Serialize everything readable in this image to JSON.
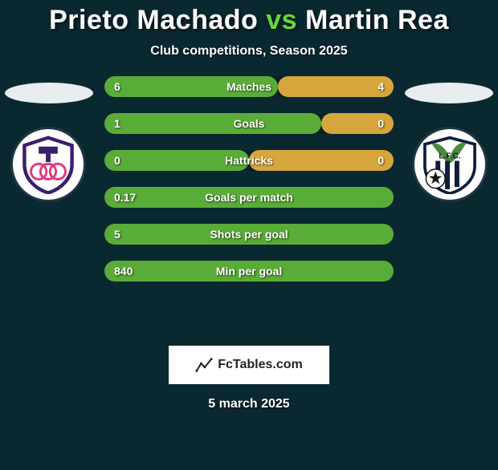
{
  "header": {
    "player1": "Prieto Machado",
    "vs": "vs",
    "player2": "Martin Rea",
    "subtitle": "Club competitions, Season 2025"
  },
  "colors": {
    "background": "#0a2830",
    "accent_green": "#66d93f",
    "bar_left": "#5aac38",
    "bar_right": "#d6a63c",
    "bar_track": "rgba(0,0,0,0.2)",
    "halo": "#e8eef0",
    "watermark_bg": "#ffffff",
    "watermark_text": "#222222",
    "crest_left_primary": "#3b1e6e",
    "crest_left_accent": "#e53a7a",
    "crest_right_primary": "#0e1e3a",
    "crest_right_accent": "#ffffff"
  },
  "stats": [
    {
      "label": "Matches",
      "left_val": "6",
      "right_val": "4",
      "left_pct": 60,
      "right_pct": 40
    },
    {
      "label": "Goals",
      "left_val": "1",
      "right_val": "0",
      "left_pct": 75,
      "right_pct": 25
    },
    {
      "label": "Hattricks",
      "left_val": "0",
      "right_val": "0",
      "left_pct": 50,
      "right_pct": 50
    },
    {
      "label": "Goals per match",
      "left_val": "0.17",
      "right_val": "",
      "left_pct": 100,
      "right_pct": 0
    },
    {
      "label": "Shots per goal",
      "left_val": "5",
      "right_val": "",
      "left_pct": 100,
      "right_pct": 0
    },
    {
      "label": "Min per goal",
      "left_val": "840",
      "right_val": "",
      "left_pct": 100,
      "right_pct": 0
    }
  ],
  "watermark": {
    "text": "FcTables.com",
    "icon_name": "chart-icon"
  },
  "date": "5 march 2025"
}
